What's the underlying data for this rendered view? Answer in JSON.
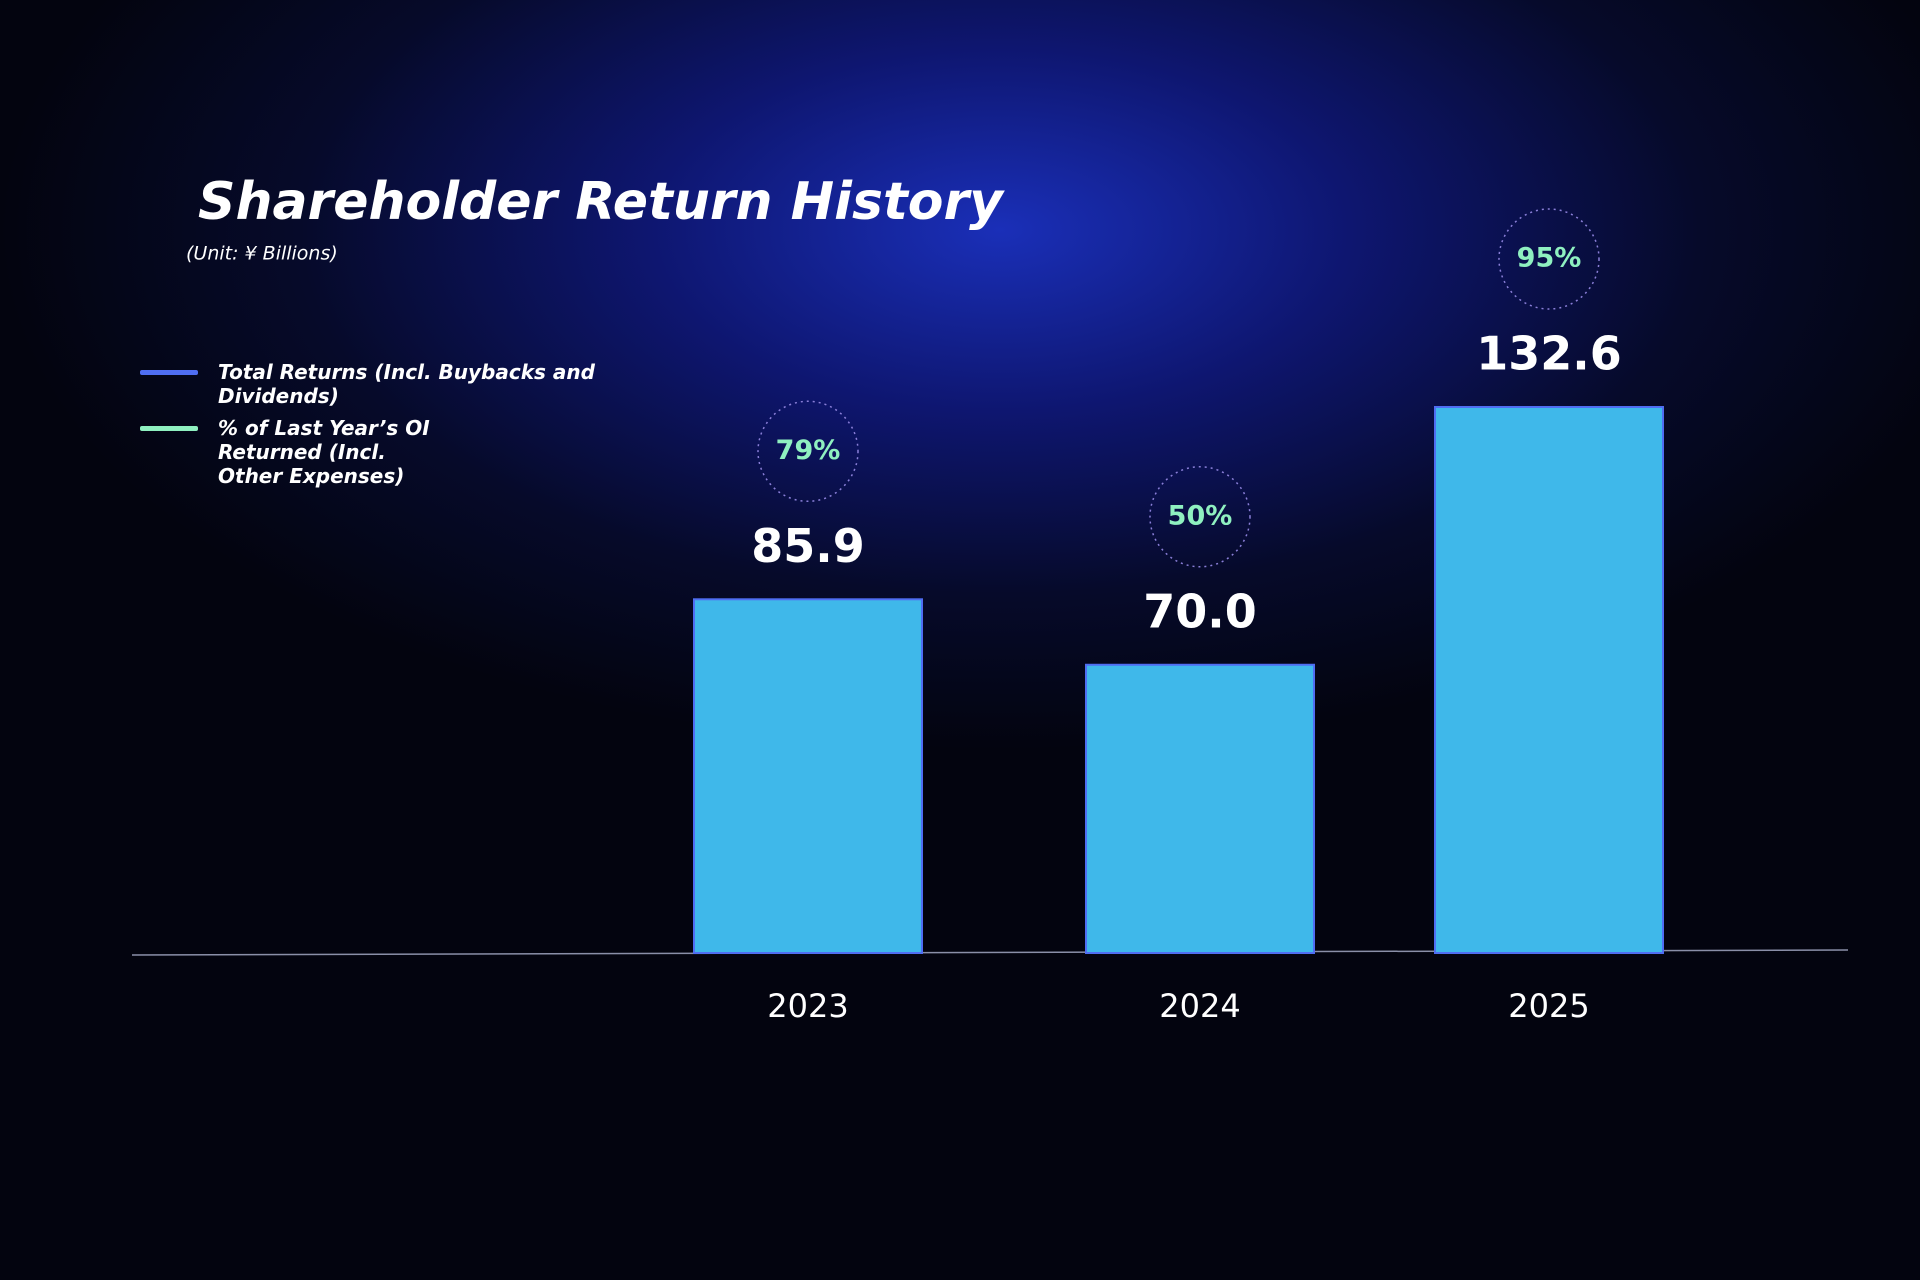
{
  "chart_data": {
    "type": "bar",
    "title": "Shareholder Return History",
    "subtitle": "(Unit: ¥ Billions)",
    "categories": [
      "2023",
      "2024",
      "2025"
    ],
    "series": [
      {
        "name": "Total Returns (Incl. Buybacks and Dividends)",
        "color": "#3fb8ea",
        "legend_color": "#4f6ef2",
        "values": [
          85.9,
          70.0,
          132.6
        ],
        "value_labels": [
          "85.9",
          "70.0",
          "132.6"
        ]
      },
      {
        "name": "% of Last Year’s OI Returned (Incl. Other Expenses)",
        "color": "#8ff0c0",
        "values": [
          79,
          50,
          95
        ],
        "value_labels": [
          "79%",
          "50%",
          "95%"
        ]
      }
    ]
  }
}
